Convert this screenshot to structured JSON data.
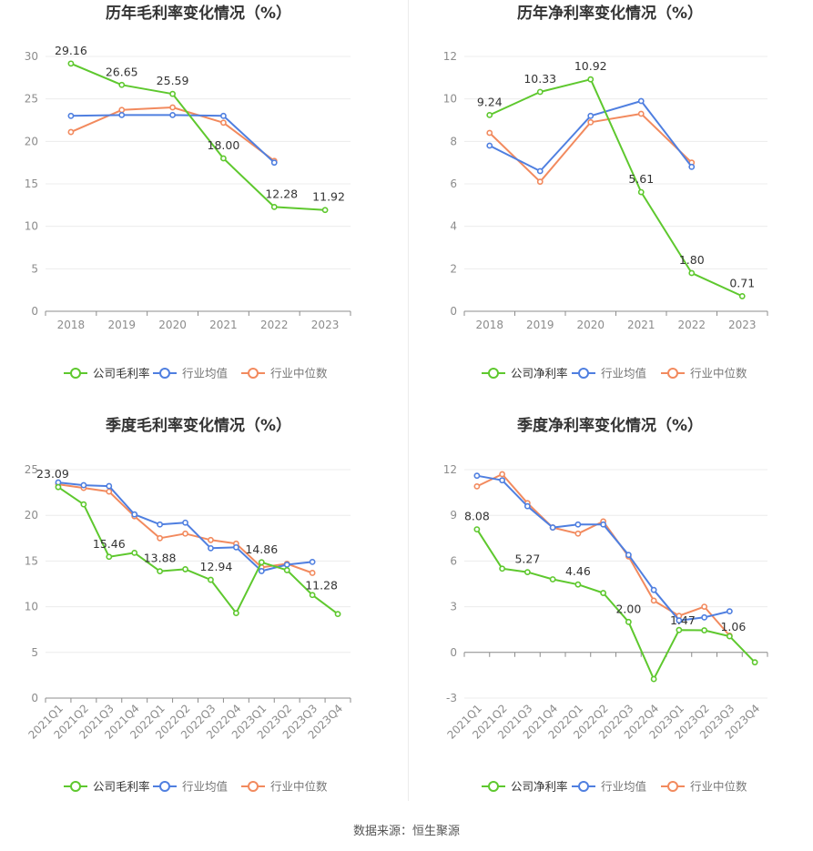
{
  "source_text": "数据来源：恒生聚源",
  "colors": {
    "company": "#5ec82e",
    "industry_avg": "#4f7fe0",
    "industry_median": "#f28a5e",
    "grid": "#ececec",
    "axis": "#8c8c8c",
    "text": "#333333"
  },
  "chart_data": [
    {
      "type": "line",
      "title": "历年毛利率变化情况（%）",
      "categories": [
        "2018",
        "2019",
        "2020",
        "2021",
        "2022",
        "2023"
      ],
      "ylim": [
        0,
        30
      ],
      "yticks": [
        0,
        5,
        10,
        15,
        20,
        25,
        30
      ],
      "grid": true,
      "legend": "bottom",
      "series": [
        {
          "name": "公司毛利率",
          "color": "#5ec82e",
          "values": [
            29.16,
            26.65,
            25.59,
            18.0,
            12.28,
            11.92
          ],
          "labels": [
            "29.16",
            "26.65",
            "25.59",
            "18.00",
            "12.28",
            "11.92"
          ]
        },
        {
          "name": "行业均值",
          "color": "#4f7fe0",
          "values": [
            23.0,
            23.1,
            23.1,
            23.0,
            17.5,
            null
          ]
        },
        {
          "name": "行业中位数",
          "color": "#f28a5e",
          "values": [
            21.1,
            23.7,
            24.0,
            22.2,
            17.7,
            null
          ]
        }
      ]
    },
    {
      "type": "line",
      "title": "历年净利率变化情况（%）",
      "categories": [
        "2018",
        "2019",
        "2020",
        "2021",
        "2022",
        "2023"
      ],
      "ylim": [
        0,
        12
      ],
      "yticks": [
        0,
        2,
        4,
        6,
        8,
        10,
        12
      ],
      "grid": true,
      "legend": "bottom",
      "series": [
        {
          "name": "公司净利率",
          "color": "#5ec82e",
          "values": [
            9.24,
            10.33,
            10.92,
            5.61,
            1.8,
            0.71
          ],
          "labels": [
            "9.24",
            "10.33",
            "10.92",
            "5.61",
            "1.80",
            "0.71"
          ]
        },
        {
          "name": "行业均值",
          "color": "#4f7fe0",
          "values": [
            7.8,
            6.6,
            9.2,
            9.9,
            6.8,
            null
          ]
        },
        {
          "name": "行业中位数",
          "color": "#f28a5e",
          "values": [
            8.4,
            6.1,
            8.9,
            9.3,
            7.0,
            null
          ]
        }
      ]
    },
    {
      "type": "line",
      "title": "季度毛利率变化情况（%）",
      "categories": [
        "2021Q1",
        "2021Q2",
        "2021Q3",
        "2021Q4",
        "2022Q1",
        "2022Q2",
        "2022Q3",
        "2022Q4",
        "2023Q1",
        "2023Q2",
        "2023Q3",
        "2023Q4"
      ],
      "ylim": [
        0,
        25
      ],
      "yticks": [
        0,
        5,
        10,
        15,
        20,
        25
      ],
      "grid": true,
      "legend": "bottom",
      "rotate_x_labels": true,
      "series": [
        {
          "name": "公司毛利率",
          "color": "#5ec82e",
          "values": [
            23.09,
            21.2,
            15.46,
            15.9,
            13.88,
            14.1,
            12.94,
            9.3,
            14.86,
            14.0,
            11.28,
            9.2
          ],
          "labels": [
            "23.09",
            "",
            "15.46",
            "",
            "13.88",
            "",
            "12.94",
            "",
            "14.86",
            "",
            "11.28",
            ""
          ]
        },
        {
          "name": "行业均值",
          "color": "#4f7fe0",
          "values": [
            23.6,
            23.3,
            23.2,
            20.1,
            19.0,
            19.2,
            16.4,
            16.5,
            13.9,
            14.6,
            14.9,
            null
          ]
        },
        {
          "name": "行业中位数",
          "color": "#f28a5e",
          "values": [
            23.4,
            23.0,
            22.6,
            19.9,
            17.5,
            18.0,
            17.3,
            16.9,
            14.3,
            14.7,
            13.7,
            null
          ]
        }
      ]
    },
    {
      "type": "line",
      "title": "季度净利率变化情况（%）",
      "categories": [
        "2021Q1",
        "2021Q2",
        "2021Q3",
        "2021Q4",
        "2022Q1",
        "2022Q2",
        "2022Q3",
        "2022Q4",
        "2023Q1",
        "2023Q2",
        "2023Q3",
        "2023Q4"
      ],
      "ylim": [
        -3,
        12
      ],
      "yticks": [
        -3,
        0,
        3,
        6,
        9,
        12
      ],
      "grid": true,
      "legend": "bottom",
      "rotate_x_labels": true,
      "series": [
        {
          "name": "公司净利率",
          "color": "#5ec82e",
          "values": [
            8.08,
            5.5,
            5.27,
            4.8,
            4.46,
            3.9,
            2.0,
            -1.75,
            1.47,
            1.45,
            1.06,
            -0.65
          ],
          "labels": [
            "8.08",
            "",
            "5.27",
            "",
            "4.46",
            "",
            "2.00",
            "",
            "1.47",
            "",
            "1.06",
            ""
          ]
        },
        {
          "name": "行业均值",
          "color": "#4f7fe0",
          "values": [
            11.6,
            11.3,
            9.6,
            8.2,
            8.4,
            8.4,
            6.4,
            4.1,
            2.1,
            2.3,
            2.7,
            null
          ]
        },
        {
          "name": "行业中位数",
          "color": "#f28a5e",
          "values": [
            10.9,
            11.7,
            9.8,
            8.2,
            7.8,
            8.6,
            6.3,
            3.4,
            2.4,
            3.0,
            1.1,
            null
          ]
        }
      ]
    }
  ]
}
